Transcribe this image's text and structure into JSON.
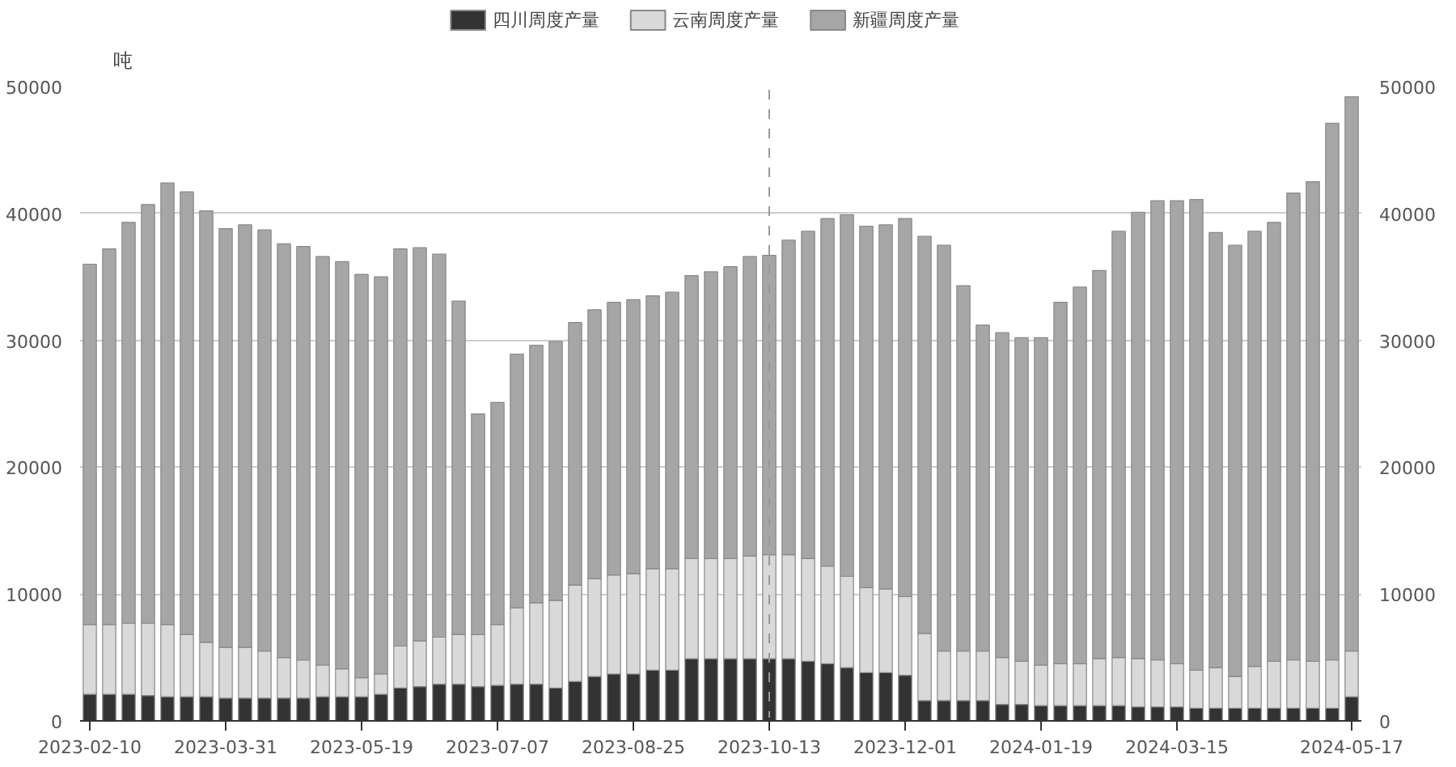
{
  "chart_data": {
    "type": "bar",
    "stacked": true,
    "ylabel": "吨",
    "categories": [
      "2023-02-10",
      null,
      null,
      null,
      null,
      null,
      null,
      "2023-03-31",
      null,
      null,
      null,
      null,
      null,
      null,
      "2023-05-19",
      null,
      null,
      null,
      null,
      null,
      null,
      "2023-07-07",
      null,
      null,
      null,
      null,
      null,
      null,
      "2023-08-25",
      null,
      null,
      null,
      null,
      null,
      null,
      "2023-10-13",
      null,
      null,
      null,
      null,
      null,
      null,
      "2023-12-01",
      null,
      null,
      null,
      null,
      null,
      null,
      "2024-01-19",
      null,
      null,
      null,
      null,
      null,
      null,
      "2024-03-15",
      null,
      null,
      null,
      null,
      null,
      null,
      null,
      null,
      "2024-05-17"
    ],
    "series": [
      {
        "name": "四川周度产量",
        "color": "#333333",
        "values": [
          2100,
          2100,
          2100,
          2000,
          1900,
          1900,
          1900,
          1800,
          1800,
          1800,
          1800,
          1800,
          1900,
          1900,
          1900,
          2100,
          2600,
          2700,
          2900,
          2900,
          2700,
          2800,
          2900,
          2900,
          2600,
          3100,
          3500,
          3700,
          3700,
          4000,
          4000,
          4900,
          4900,
          4900,
          4900,
          4900,
          4900,
          4700,
          4500,
          4200,
          3800,
          3800,
          3600,
          1600,
          1600,
          1600,
          1600,
          1300,
          1300,
          1200,
          1200,
          1200,
          1200,
          1200,
          1100,
          1100,
          1100,
          1000,
          1000,
          1000,
          1000,
          1000,
          1000,
          1000,
          1000,
          1900
        ]
      },
      {
        "name": "云南周度产量",
        "color": "#d9d9d9",
        "values": [
          5500,
          5500,
          5600,
          5700,
          5700,
          4900,
          4300,
          4000,
          4000,
          3700,
          3200,
          3000,
          2500,
          2200,
          1500,
          1600,
          3300,
          3600,
          3700,
          3900,
          4100,
          4800,
          6000,
          6400,
          6900,
          7600,
          7700,
          7800,
          7900,
          8000,
          8000,
          7900,
          7900,
          7900,
          8100,
          8200,
          8200,
          8100,
          7700,
          7200,
          6700,
          6600,
          6200,
          5300,
          3900,
          3900,
          3900,
          3700,
          3400,
          3200,
          3300,
          3300,
          3700,
          3800,
          3800,
          3700,
          3400,
          3000,
          3200,
          2500,
          3300,
          3700,
          3800,
          3700,
          3800,
          3600
        ]
      },
      {
        "name": "新疆周度产量",
        "color": "#a6a6a6",
        "values": [
          28400,
          29600,
          31600,
          33000,
          34800,
          34900,
          34000,
          33000,
          33300,
          33200,
          32600,
          32600,
          32200,
          32100,
          31800,
          31300,
          31300,
          31000,
          30200,
          26300,
          17400,
          17500,
          20000,
          20300,
          20400,
          20700,
          21200,
          21500,
          21600,
          21500,
          21800,
          22300,
          22600,
          23000,
          23600,
          23600,
          24800,
          25800,
          27400,
          28500,
          28500,
          28700,
          29800,
          31300,
          32000,
          28800,
          25700,
          25600,
          25500,
          25800,
          28500,
          29700,
          30600,
          33600,
          35200,
          36200,
          36500,
          37100,
          34300,
          34000,
          34300,
          34600,
          36800,
          37800,
          42300,
          43700
        ]
      }
    ],
    "ylim": [
      0,
      50000
    ],
    "yticks": [
      0,
      10000,
      20000,
      30000,
      40000,
      50000
    ],
    "y2lim": [
      0,
      50000
    ],
    "y2ticks": [
      0,
      10000,
      20000,
      30000,
      40000,
      50000
    ],
    "ref_lines": [
      {
        "axis": "x",
        "value": "2023-10-13",
        "line_style": "dashed",
        "color": "#999999"
      }
    ],
    "grid": "y",
    "legend": "top"
  }
}
